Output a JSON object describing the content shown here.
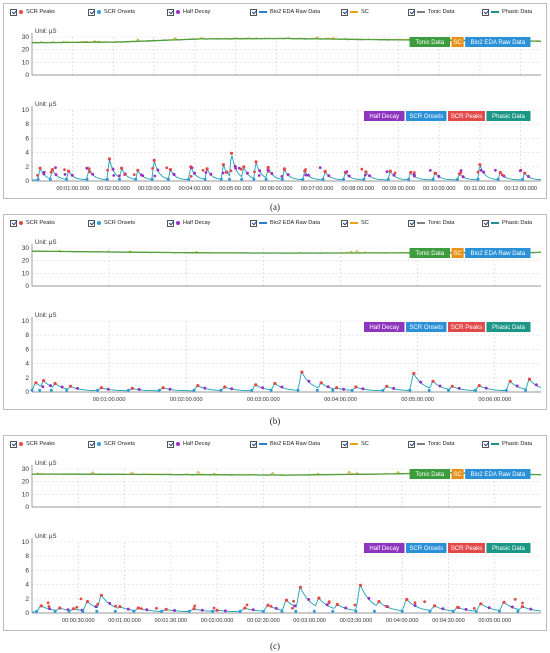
{
  "legend": [
    {
      "label": "SCR Peaks",
      "kind": "dot",
      "color": "#e64848"
    },
    {
      "label": "SCR Onsets",
      "kind": "dot",
      "color": "#2d9be0"
    },
    {
      "label": "Half Decay",
      "kind": "dot",
      "color": "#9b2fc4"
    },
    {
      "label": "Bio2 EDA Raw Data",
      "kind": "line",
      "color": "#2a7fd0"
    },
    {
      "label": "SC",
      "kind": "line",
      "color": "#e8a317"
    },
    {
      "label": "Tonic Data",
      "kind": "line",
      "color": "#7f7f7f"
    },
    {
      "label": "Phasic Data",
      "kind": "line",
      "color": "#1f8f8f"
    }
  ],
  "colors": {
    "raw": "#2a7fd0",
    "sc": "#e8a317",
    "tonic": "#4fa13c",
    "phasic": "#1aa3b5",
    "peak": "#e64848",
    "onset": "#2d9be0",
    "half": "#9b2fc4"
  },
  "upper_tags": [
    {
      "text": "Tonic Data",
      "color": "#3d9c3d"
    },
    {
      "text": "SC",
      "color": "#e8911a"
    },
    {
      "text": "Bio2 EDA Raw Data",
      "color": "#2a90d8"
    }
  ],
  "lower_tags": [
    {
      "text": "Half Decay",
      "color": "#8e35bf"
    },
    {
      "text": "SCR Onsets",
      "color": "#2a90d8"
    },
    {
      "text": "SCR Peaks",
      "color": "#e24a4a"
    },
    {
      "text": "Phasic Data",
      "color": "#1c9686"
    }
  ],
  "chart_data": [
    {
      "type": "line",
      "caption": "(a)",
      "upper": {
        "unit": "Unit: μS",
        "ylim": [
          0,
          30
        ],
        "yticks": [
          0,
          10,
          20,
          30
        ],
        "tonic_level": [
          25.5,
          26.0,
          28.5,
          28.8,
          28.0,
          27.2,
          26.7
        ],
        "noise": 0.9
      },
      "lower": {
        "unit": "Unit: μS",
        "ylim": [
          0,
          10
        ],
        "yticks": [
          0,
          2,
          4,
          6,
          8,
          10
        ]
      },
      "xlim": [
        0,
        12.5
      ],
      "xticks": [
        1,
        2,
        3,
        4,
        5,
        6,
        7,
        8,
        9,
        10,
        11,
        12
      ],
      "xtick_labels": [
        "00:01:00.000",
        "00:02:00.000",
        "00:03:00.000",
        "00:04:00.000",
        "00:05:00.000",
        "00:06:00.000",
        "00:07:00.000",
        "00:08:00.000",
        "00:09:00.000",
        "00:10:00.000",
        "00:11:00.000",
        "00:12:00.000"
      ],
      "peaks": [
        [
          0.2,
          1.8
        ],
        [
          0.5,
          1.6
        ],
        [
          0.9,
          1.4
        ],
        [
          1.4,
          1.7
        ],
        [
          1.9,
          3.1
        ],
        [
          2.2,
          1.8
        ],
        [
          2.6,
          1.5
        ],
        [
          3.0,
          2.9
        ],
        [
          3.4,
          1.6
        ],
        [
          3.9,
          2.0
        ],
        [
          4.3,
          1.7
        ],
        [
          4.7,
          2.3
        ],
        [
          4.9,
          3.9
        ],
        [
          5.2,
          2.0
        ],
        [
          5.5,
          2.7
        ],
        [
          5.8,
          1.9
        ],
        [
          6.2,
          1.6
        ],
        [
          6.7,
          1.4
        ],
        [
          7.2,
          1.3
        ],
        [
          7.7,
          1.2
        ],
        [
          8.2,
          1.3
        ],
        [
          8.8,
          1.4
        ],
        [
          9.3,
          1.2
        ],
        [
          9.9,
          1.1
        ],
        [
          10.5,
          1.0
        ],
        [
          11.0,
          2.3
        ],
        [
          11.5,
          1.2
        ],
        [
          12.1,
          1.1
        ]
      ],
      "density": 5
    },
    {
      "type": "line",
      "caption": "(b)",
      "upper": {
        "unit": "Unit: μS",
        "ylim": [
          0,
          30
        ],
        "yticks": [
          0,
          10,
          20,
          30
        ],
        "tonic_level": [
          27.5,
          26.8,
          26.2,
          26.0,
          26.1,
          26.3,
          26.5
        ],
        "noise": 0.4
      },
      "lower": {
        "unit": "Unit: μS",
        "ylim": [
          0,
          10
        ],
        "yticks": [
          0,
          2,
          4,
          6,
          8,
          10
        ]
      },
      "xlim": [
        0,
        6.6
      ],
      "xticks": [
        1,
        2,
        3,
        4,
        5,
        6
      ],
      "xtick_labels": [
        "00:01:00.000",
        "00:02:00.000",
        "00:03:00.000",
        "00:04:00.000",
        "00:05:00.000",
        "00:06:00.000"
      ],
      "peaks": [
        [
          0.05,
          1.3
        ],
        [
          0.15,
          1.6
        ],
        [
          0.3,
          1.2
        ],
        [
          0.5,
          0.8
        ],
        [
          0.9,
          0.6
        ],
        [
          1.3,
          0.5
        ],
        [
          1.7,
          0.6
        ],
        [
          2.15,
          0.9
        ],
        [
          2.5,
          0.7
        ],
        [
          2.9,
          1.0
        ],
        [
          3.15,
          1.2
        ],
        [
          3.5,
          2.8
        ],
        [
          3.75,
          1.3
        ],
        [
          3.95,
          0.6
        ],
        [
          4.2,
          0.7
        ],
        [
          4.6,
          0.8
        ],
        [
          4.95,
          2.6
        ],
        [
          5.2,
          1.5
        ],
        [
          5.45,
          0.8
        ],
        [
          5.8,
          0.9
        ],
        [
          6.2,
          1.5
        ],
        [
          6.45,
          1.8
        ]
      ],
      "density": 3
    },
    {
      "type": "line",
      "caption": "(c)",
      "upper": {
        "unit": "Unit: μS",
        "ylim": [
          0,
          30
        ],
        "yticks": [
          0,
          10,
          20,
          30
        ],
        "tonic_level": [
          26.0,
          25.8,
          25.5,
          25.2,
          25.9,
          27.0,
          25.5
        ],
        "noise": 0.7
      },
      "lower": {
        "unit": "Unit: μS",
        "ylim": [
          0,
          10
        ],
        "yticks": [
          0,
          2,
          4,
          6,
          8,
          10
        ]
      },
      "xlim": [
        0,
        5.5
      ],
      "xticks": [
        0.5,
        1,
        1.5,
        2,
        2.5,
        3,
        3.5,
        4,
        4.5,
        5
      ],
      "xtick_labels": [
        "00:00:30.000",
        "00:01:00.000",
        "00:01:30.000",
        "00:02:00.000",
        "00:02:30.000",
        "00:03:00.000",
        "00:03:30.000",
        "00:04:00.000",
        "00:04:30.000",
        "00:05:00.000"
      ],
      "peaks": [
        [
          0.1,
          1.0
        ],
        [
          0.3,
          0.7
        ],
        [
          0.45,
          0.6
        ],
        [
          0.6,
          1.6
        ],
        [
          0.75,
          2.5
        ],
        [
          0.95,
          0.9
        ],
        [
          1.15,
          0.7
        ],
        [
          1.45,
          0.5
        ],
        [
          1.75,
          0.6
        ],
        [
          2.0,
          0.4
        ],
        [
          2.3,
          0.7
        ],
        [
          2.55,
          1.1
        ],
        [
          2.75,
          1.8
        ],
        [
          2.9,
          3.6
        ],
        [
          3.1,
          2.1
        ],
        [
          3.3,
          1.2
        ],
        [
          3.55,
          3.9
        ],
        [
          3.75,
          1.6
        ],
        [
          4.05,
          1.9
        ],
        [
          4.35,
          1.0
        ],
        [
          4.6,
          0.8
        ],
        [
          4.85,
          1.3
        ],
        [
          5.1,
          1.5
        ],
        [
          5.3,
          0.9
        ]
      ],
      "density": 4
    }
  ]
}
